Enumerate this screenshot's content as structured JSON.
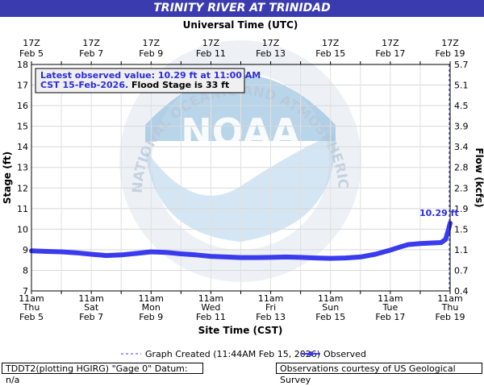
{
  "title": "TRINITY RIVER AT TRINIDAD",
  "top_axis_title": "Universal Time (UTC)",
  "bottom_axis_title": "Site Time (CST)",
  "left_axis_title": "Stage (ft)",
  "right_axis_title": "Flow (kcfs)",
  "top_ticks": [
    {
      "l1": "17Z",
      "l2": "Feb  5"
    },
    {
      "l1": "17Z",
      "l2": "Feb  7"
    },
    {
      "l1": "17Z",
      "l2": "Feb  9"
    },
    {
      "l1": "17Z",
      "l2": "Feb 11"
    },
    {
      "l1": "17Z",
      "l2": "Feb 13"
    },
    {
      "l1": "17Z",
      "l2": "Feb 15"
    },
    {
      "l1": "17Z",
      "l2": "Feb 17"
    },
    {
      "l1": "17Z",
      "l2": "Feb 19"
    }
  ],
  "bottom_ticks": [
    {
      "l1": "11am",
      "l2": "Thu",
      "l3": "Feb 5"
    },
    {
      "l1": "11am",
      "l2": "Sat",
      "l3": "Feb 7"
    },
    {
      "l1": "11am",
      "l2": "Mon",
      "l3": "Feb 9"
    },
    {
      "l1": "11am",
      "l2": "Wed",
      "l3": "Feb 11"
    },
    {
      "l1": "11am",
      "l2": "Fri",
      "l3": "Feb 13"
    },
    {
      "l1": "11am",
      "l2": "Sun",
      "l3": "Feb 15"
    },
    {
      "l1": "11am",
      "l2": "Tue",
      "l3": "Feb 17"
    },
    {
      "l1": "11am",
      "l2": "Thu",
      "l3": "Feb 19"
    }
  ],
  "info_box": {
    "line1": "Latest observed value: 10.29 ft at 11:00 AM",
    "line2a": "CST 15-Feb-2026. ",
    "line2b": "Flood Stage is 33 ft"
  },
  "watermark": {
    "logo_text": "NOAA",
    "ring_text": "NATIONAL OCEANIC AND ATMOSPHERIC ADMINISTRATION · U.S. DEPARTMENT OF COMMERCE"
  },
  "legend": {
    "created": "Graph Created (11:44AM Feb 15, 2026)",
    "observed": "Observed"
  },
  "footer_left": "TDDT2(plotting HGIRG) \"Gage 0\" Datum: n/a",
  "footer_right": "Observations courtesy of US Geological Survey",
  "colors": {
    "title_bg": "#3b3bb0",
    "series": "#3b3bee",
    "label": "#2b2bdd",
    "grid": "#dddddd"
  },
  "chart_data": {
    "type": "line",
    "x_unit": "days since 11am Thu Feb 5 (CST)",
    "xlim": [
      0,
      14
    ],
    "ylim": [
      7,
      18
    ],
    "y_right_ticks": [
      "0.4",
      "0.7",
      "1.1",
      "1.5",
      "1.9",
      "2.3",
      "2.8",
      "3.4",
      "3.9",
      "4.5",
      "5.1",
      "5.7"
    ],
    "graph_created_x": 0.03,
    "latest_label": "10.29 ft",
    "series": [
      {
        "name": "Observed",
        "points": [
          [
            0,
            8.95
          ],
          [
            0.5,
            8.92
          ],
          [
            1,
            8.9
          ],
          [
            1.5,
            8.85
          ],
          [
            2,
            8.78
          ],
          [
            2.5,
            8.72
          ],
          [
            3,
            8.75
          ],
          [
            3.5,
            8.82
          ],
          [
            4,
            8.9
          ],
          [
            4.5,
            8.87
          ],
          [
            5,
            8.8
          ],
          [
            5.5,
            8.75
          ],
          [
            6,
            8.68
          ],
          [
            6.5,
            8.65
          ],
          [
            7,
            8.62
          ],
          [
            7.5,
            8.62
          ],
          [
            8,
            8.63
          ],
          [
            8.5,
            8.65
          ],
          [
            9,
            8.63
          ],
          [
            9.5,
            8.6
          ],
          [
            10,
            8.58
          ],
          [
            10.5,
            8.6
          ],
          [
            11,
            8.65
          ],
          [
            11.5,
            8.78
          ],
          [
            12,
            8.98
          ],
          [
            12.3,
            9.12
          ],
          [
            12.6,
            9.25
          ],
          [
            13,
            9.3
          ],
          [
            13.4,
            9.33
          ],
          [
            13.7,
            9.35
          ],
          [
            13.85,
            9.5
          ],
          [
            13.93,
            9.9
          ],
          [
            14,
            10.29
          ]
        ]
      }
    ]
  }
}
